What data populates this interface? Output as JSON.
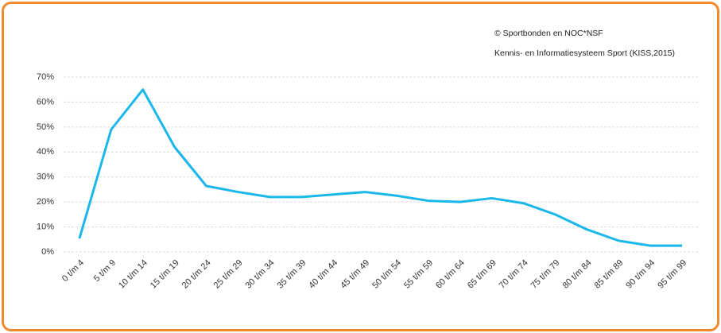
{
  "chart_data": {
    "type": "line",
    "annotations": [
      "© Sportbonden en NOC*NSF",
      "Kennis- en Informatiesysteem Sport (KISS,2015)"
    ],
    "categories": [
      "0 t/m 4",
      "5 t/m 9",
      "10 t/m 14",
      "15 t/m 19",
      "20 t/m 24",
      "25 t/m 29",
      "30 t/m 34",
      "35 t/m 39",
      "40 t/m 44",
      "45 t/m 49",
      "50 t/m 54",
      "55 t/m 59",
      "60 t/m 64",
      "65 t/m 69",
      "70 t/m 74",
      "75 t/m 79",
      "80 t/m 84",
      "85 t/m 89",
      "90 t/m 94",
      "95 t/m 99"
    ],
    "values": [
      5.4,
      49,
      65,
      42,
      26.4,
      24,
      22,
      22,
      23,
      24,
      22.5,
      20.5,
      20,
      21.5,
      19.5,
      15,
      9,
      4.5,
      2.5,
      2.5
    ],
    "color": "#1ab7ea",
    "ylim": [
      0,
      70
    ],
    "yticks": [
      {
        "value": 0,
        "label": "0%"
      },
      {
        "value": 10,
        "label": "10%"
      },
      {
        "value": 20,
        "label": "20%"
      },
      {
        "value": 30,
        "label": "30%"
      },
      {
        "value": 40,
        "label": "40%"
      },
      {
        "value": 50,
        "label": "50%"
      },
      {
        "value": 60,
        "label": "60%"
      },
      {
        "value": 70,
        "label": "70%"
      }
    ],
    "grid": true
  }
}
